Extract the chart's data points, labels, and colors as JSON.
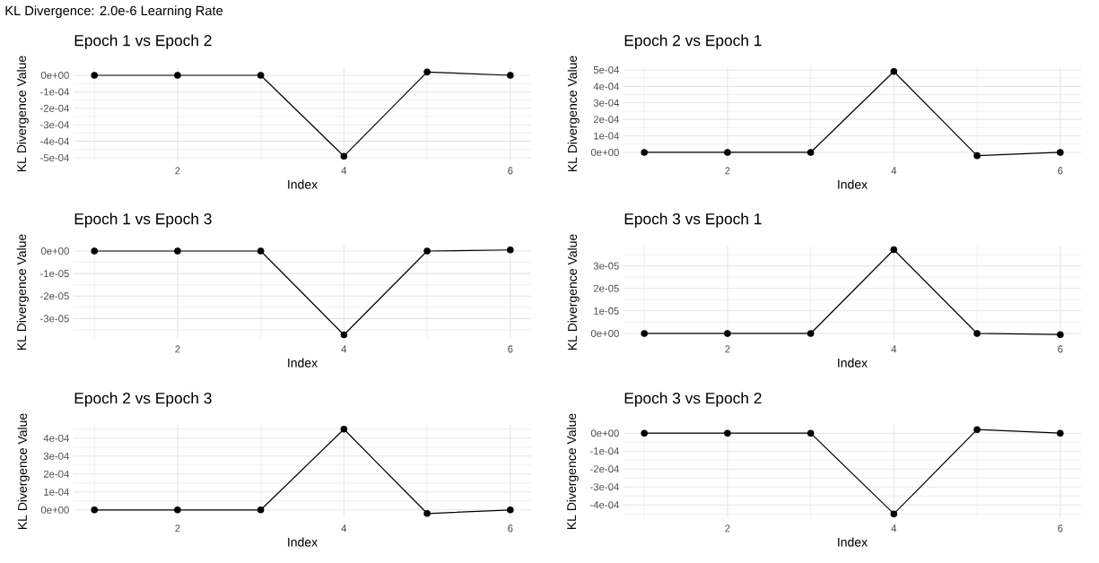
{
  "chart_data": [
    {
      "type": "line",
      "title": "Epoch 1 vs Epoch 2",
      "xlabel": "Index",
      "ylabel": "KL Divergence Value",
      "annotations": [
        "KL Divergence: 2.0e-6 Learning Rate"
      ],
      "x": [
        1,
        2,
        3,
        4,
        5,
        6
      ],
      "values": [
        0,
        0,
        0,
        -0.00049,
        2e-05,
        0
      ],
      "color": "#000000",
      "xlim": [
        0.75,
        6.25
      ],
      "xticks": [
        2,
        4,
        6
      ],
      "ylim": [
        -0.000516,
        4.9e-05
      ],
      "yticks": [
        {
          "value": -0.0005,
          "label": "-5e-04"
        },
        {
          "value": -0.0004,
          "label": "-4e-04"
        },
        {
          "value": -0.0003,
          "label": "-3e-04"
        },
        {
          "value": -0.0002,
          "label": "-2e-04"
        },
        {
          "value": -0.0001,
          "label": "-1e-04"
        },
        {
          "value": 0,
          "label": "0e+00"
        }
      ],
      "grid": true,
      "marker": "circle"
    },
    {
      "type": "line",
      "title": "Epoch 2 vs Epoch 1",
      "xlabel": "Index",
      "ylabel": "KL Divergence Value",
      "x": [
        1,
        2,
        3,
        4,
        5,
        6
      ],
      "values": [
        0,
        0,
        0,
        0.00049,
        -2e-05,
        0
      ],
      "color": "#000000",
      "xlim": [
        0.75,
        6.25
      ],
      "xticks": [
        2,
        4,
        6
      ],
      "ylim": [
        -4.9e-05,
        0.000516
      ],
      "yticks": [
        {
          "value": 0,
          "label": "0e+00"
        },
        {
          "value": 0.0001,
          "label": "1e-04"
        },
        {
          "value": 0.0002,
          "label": "2e-04"
        },
        {
          "value": 0.0003,
          "label": "3e-04"
        },
        {
          "value": 0.0004,
          "label": "4e-04"
        },
        {
          "value": 0.0005,
          "label": "5e-04"
        }
      ],
      "grid": true,
      "marker": "circle"
    },
    {
      "type": "line",
      "title": "Epoch 1 vs Epoch 3",
      "xlabel": "Index",
      "ylabel": "KL Divergence Value",
      "x": [
        1,
        2,
        3,
        4,
        5,
        6
      ],
      "values": [
        0,
        0,
        0,
        -3.72e-05,
        0,
        5e-07
      ],
      "color": "#000000",
      "xlim": [
        0.75,
        6.25
      ],
      "xticks": [
        2,
        4,
        6
      ],
      "ylim": [
        -3.9e-05,
        2.4e-06
      ],
      "yticks": [
        {
          "value": -3e-05,
          "label": "-3e-05"
        },
        {
          "value": -2e-05,
          "label": "-2e-05"
        },
        {
          "value": -1e-05,
          "label": "-1e-05"
        },
        {
          "value": 0,
          "label": "0e+00"
        }
      ],
      "grid": true,
      "marker": "circle"
    },
    {
      "type": "line",
      "title": "Epoch 3 vs Epoch 1",
      "xlabel": "Index",
      "ylabel": "KL Divergence Value",
      "x": [
        1,
        2,
        3,
        4,
        5,
        6
      ],
      "values": [
        0,
        0,
        0,
        3.72e-05,
        0,
        -5e-07
      ],
      "color": "#000000",
      "xlim": [
        0.75,
        6.25
      ],
      "xticks": [
        2,
        4,
        6
      ],
      "ylim": [
        -2.4e-06,
        3.9e-05
      ],
      "yticks": [
        {
          "value": 0,
          "label": "0e+00"
        },
        {
          "value": 1e-05,
          "label": "1e-05"
        },
        {
          "value": 2e-05,
          "label": "2e-05"
        },
        {
          "value": 3e-05,
          "label": "3e-05"
        }
      ],
      "grid": true,
      "marker": "circle"
    },
    {
      "type": "line",
      "title": "Epoch 2 vs Epoch 3",
      "xlabel": "Index",
      "ylabel": "KL Divergence Value",
      "x": [
        1,
        2,
        3,
        4,
        5,
        6
      ],
      "values": [
        0,
        0,
        0,
        0.00045,
        -2e-05,
        0
      ],
      "color": "#000000",
      "xlim": [
        0.75,
        6.25
      ],
      "xticks": [
        2,
        4,
        6
      ],
      "ylim": [
        -4.6e-05,
        0.000474
      ],
      "yticks": [
        {
          "value": 0,
          "label": "0e+00"
        },
        {
          "value": 0.0001,
          "label": "1e-04"
        },
        {
          "value": 0.0002,
          "label": "2e-04"
        },
        {
          "value": 0.0003,
          "label": "3e-04"
        },
        {
          "value": 0.0004,
          "label": "4e-04"
        }
      ],
      "grid": true,
      "marker": "circle"
    },
    {
      "type": "line",
      "title": "Epoch 3 vs Epoch 2",
      "xlabel": "Index",
      "ylabel": "KL Divergence Value",
      "x": [
        1,
        2,
        3,
        4,
        5,
        6
      ],
      "values": [
        0,
        0,
        0,
        -0.00045,
        2e-05,
        0
      ],
      "color": "#000000",
      "xlim": [
        0.75,
        6.25
      ],
      "xticks": [
        2,
        4,
        6
      ],
      "ylim": [
        -0.000474,
        4.6e-05
      ],
      "yticks": [
        {
          "value": -0.0004,
          "label": "-4e-04"
        },
        {
          "value": -0.0003,
          "label": "-3e-04"
        },
        {
          "value": -0.0002,
          "label": "-2e-04"
        },
        {
          "value": -0.0001,
          "label": "-1e-04"
        },
        {
          "value": 0,
          "label": "0e+00"
        }
      ],
      "grid": true,
      "marker": "circle"
    }
  ]
}
